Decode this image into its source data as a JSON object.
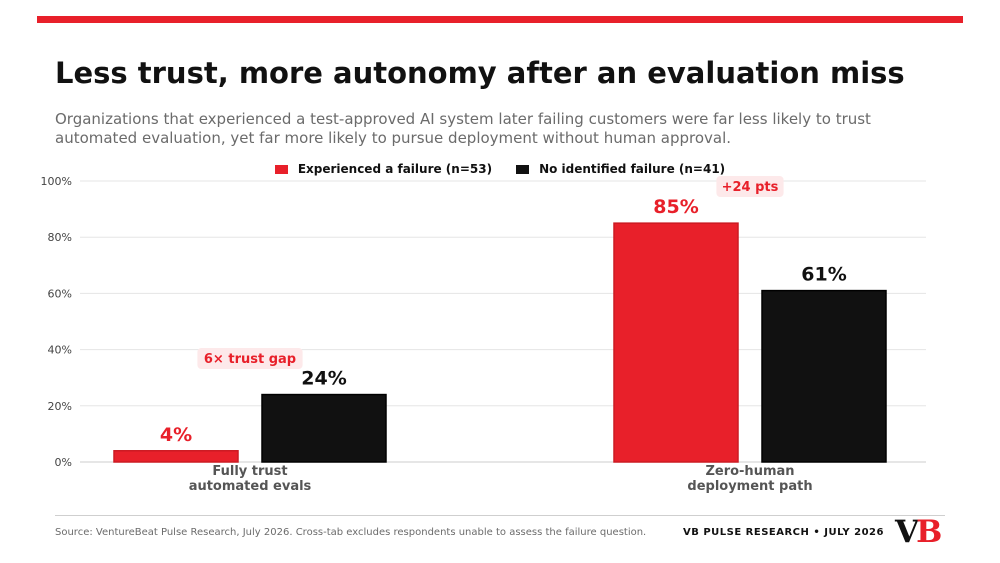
{
  "header": {
    "title": "Less trust, more autonomy after an evaluation miss",
    "subtitle": "Organizations that experienced a test-approved AI system later failing customers were far less likely to trust automated evaluation, yet far more likely to pursue deployment without human approval."
  },
  "colors": {
    "accent": "#e8202a",
    "dark": "#111111",
    "muted": "#6b6b6b",
    "grid": "#e5e5e5"
  },
  "chart_data": {
    "type": "bar",
    "categories": [
      "Fully trust\nautomated evals",
      "Zero-human\ndeployment path"
    ],
    "series": [
      {
        "name": "Experienced a failure  (n=53)",
        "color": "#e8202a",
        "values": [
          4,
          85
        ]
      },
      {
        "name": "No identified failure  (n=41)",
        "color": "#111111",
        "values": [
          24,
          61
        ]
      }
    ],
    "value_labels": [
      [
        "4%",
        "85%"
      ],
      [
        "24%",
        "61%"
      ]
    ],
    "ylim": [
      0,
      100
    ],
    "yticks": [
      0,
      20,
      40,
      60,
      80,
      100
    ],
    "ytick_labels": [
      "0%",
      "20%",
      "40%",
      "60%",
      "80%",
      "100%"
    ],
    "grid": true,
    "legend_position": "top-center",
    "annotations": [
      {
        "category": 0,
        "text": "6× trust gap"
      },
      {
        "category": 1,
        "text": "+24 pts"
      }
    ]
  },
  "footer": {
    "source": "Source: VentureBeat Pulse Research, July 2026. Cross-tab excludes respondents unable to assess the failure question.",
    "brand": "VB PULSE RESEARCH  •  JULY 2026",
    "logo_v": "V",
    "logo_b": "B"
  }
}
